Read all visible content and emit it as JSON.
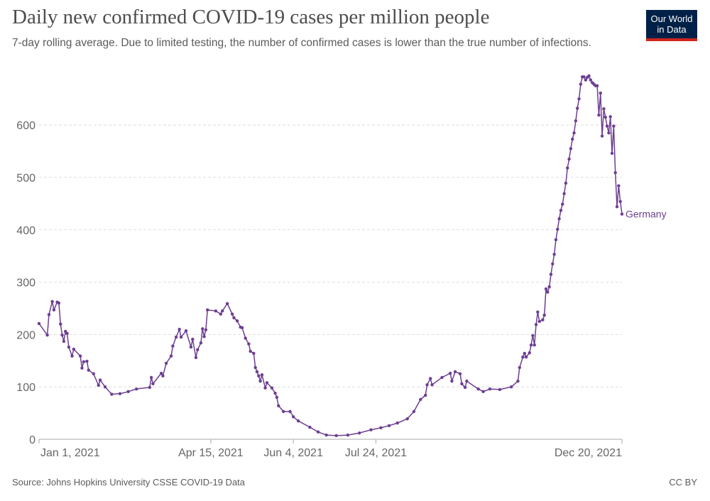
{
  "header": {
    "title": "Daily new confirmed COVID-19 cases per million people",
    "subtitle": "7-day rolling average. Due to limited testing, the number of confirmed cases is lower than the true number of infections.",
    "logo": "Our World in Data"
  },
  "footer": {
    "source": "Source: Johns Hopkins University CSSE COVID-19 Data",
    "license": "CC BY"
  },
  "chart_data": {
    "type": "line",
    "title": "Daily new confirmed COVID-19 cases per million people",
    "xlabel": "",
    "ylabel": "",
    "xlim": [
      "2021-01-01",
      "2021-12-20"
    ],
    "ylim": [
      0,
      700
    ],
    "x_ticks": [
      {
        "date": "2021-01-01",
        "label": "Jan 1, 2021"
      },
      {
        "date": "2021-04-15",
        "label": "Apr 15, 2021"
      },
      {
        "date": "2021-06-04",
        "label": "Jun 4, 2021"
      },
      {
        "date": "2021-07-24",
        "label": "Jul 24, 2021"
      },
      {
        "date": "2021-12-20",
        "label": "Dec 20, 2021"
      }
    ],
    "y_ticks": [
      "0",
      "100",
      "200",
      "300",
      "400",
      "500",
      "600"
    ],
    "grid": "horizontal dashed",
    "legend": "inline label at line end",
    "series": [
      {
        "name": "Germany",
        "color": "#6d3e91",
        "points": [
          [
            "2021-01-01",
            221
          ],
          [
            "2021-01-06",
            199
          ],
          [
            "2021-01-07",
            238
          ],
          [
            "2021-01-09",
            263
          ],
          [
            "2021-01-10",
            247
          ],
          [
            "2021-01-12",
            262
          ],
          [
            "2021-01-13",
            260
          ],
          [
            "2021-01-14",
            220
          ],
          [
            "2021-01-15",
            199
          ],
          [
            "2021-01-16",
            187
          ],
          [
            "2021-01-17",
            206
          ],
          [
            "2021-01-18",
            202
          ],
          [
            "2021-01-19",
            176
          ],
          [
            "2021-01-21",
            159
          ],
          [
            "2021-01-22",
            172
          ],
          [
            "2021-01-26",
            159
          ],
          [
            "2021-01-27",
            136
          ],
          [
            "2021-01-28",
            148
          ],
          [
            "2021-01-30",
            149
          ],
          [
            "2021-01-31",
            132
          ],
          [
            "2021-02-03",
            125
          ],
          [
            "2021-02-06",
            103
          ],
          [
            "2021-02-07",
            113
          ],
          [
            "2021-02-10",
            100
          ],
          [
            "2021-02-14",
            86
          ],
          [
            "2021-02-19",
            87
          ],
          [
            "2021-02-24",
            91
          ],
          [
            "2021-03-01",
            96
          ],
          [
            "2021-03-09",
            99
          ],
          [
            "2021-03-10",
            118
          ],
          [
            "2021-03-11",
            106
          ],
          [
            "2021-03-16",
            126
          ],
          [
            "2021-03-17",
            121
          ],
          [
            "2021-03-19",
            145
          ],
          [
            "2021-03-22",
            159
          ],
          [
            "2021-03-23",
            178
          ],
          [
            "2021-03-25",
            195
          ],
          [
            "2021-03-27",
            210
          ],
          [
            "2021-03-28",
            195
          ],
          [
            "2021-03-31",
            207
          ],
          [
            "2021-04-03",
            176
          ],
          [
            "2021-04-04",
            191
          ],
          [
            "2021-04-06",
            156
          ],
          [
            "2021-04-07",
            171
          ],
          [
            "2021-04-09",
            184
          ],
          [
            "2021-04-10",
            211
          ],
          [
            "2021-04-11",
            196
          ],
          [
            "2021-04-12",
            209
          ],
          [
            "2021-04-13",
            247
          ],
          [
            "2021-04-18",
            245
          ],
          [
            "2021-04-21",
            239
          ],
          [
            "2021-04-22",
            245
          ],
          [
            "2021-04-25",
            259
          ],
          [
            "2021-04-28",
            239
          ],
          [
            "2021-04-29",
            232
          ],
          [
            "2021-05-01",
            226
          ],
          [
            "2021-05-03",
            214
          ],
          [
            "2021-05-04",
            213
          ],
          [
            "2021-05-06",
            193
          ],
          [
            "2021-05-08",
            182
          ],
          [
            "2021-05-09",
            168
          ],
          [
            "2021-05-11",
            164
          ],
          [
            "2021-05-12",
            137
          ],
          [
            "2021-05-13",
            129
          ],
          [
            "2021-05-14",
            121
          ],
          [
            "2021-05-15",
            111
          ],
          [
            "2021-05-16",
            123
          ],
          [
            "2021-05-18",
            98
          ],
          [
            "2021-05-19",
            108
          ],
          [
            "2021-05-22",
            98
          ],
          [
            "2021-05-24",
            88
          ],
          [
            "2021-05-25",
            80
          ],
          [
            "2021-05-26",
            64
          ],
          [
            "2021-05-29",
            53
          ],
          [
            "2021-06-02",
            53
          ],
          [
            "2021-06-04",
            43
          ],
          [
            "2021-06-07",
            35
          ],
          [
            "2021-06-14",
            23
          ],
          [
            "2021-06-19",
            14
          ],
          [
            "2021-06-24",
            8
          ],
          [
            "2021-06-30",
            7
          ],
          [
            "2021-07-07",
            8
          ],
          [
            "2021-07-14",
            12
          ],
          [
            "2021-07-21",
            18
          ],
          [
            "2021-07-27",
            22
          ],
          [
            "2021-08-01",
            26
          ],
          [
            "2021-08-06",
            31
          ],
          [
            "2021-08-12",
            39
          ],
          [
            "2021-08-16",
            53
          ],
          [
            "2021-08-20",
            76
          ],
          [
            "2021-08-23",
            84
          ],
          [
            "2021-08-24",
            104
          ],
          [
            "2021-08-26",
            116
          ],
          [
            "2021-08-27",
            104
          ],
          [
            "2021-09-02",
            118
          ],
          [
            "2021-09-07",
            126
          ],
          [
            "2021-09-08",
            111
          ],
          [
            "2021-09-10",
            129
          ],
          [
            "2021-09-13",
            125
          ],
          [
            "2021-09-14",
            106
          ],
          [
            "2021-09-16",
            99
          ],
          [
            "2021-09-17",
            111
          ],
          [
            "2021-09-24",
            96
          ],
          [
            "2021-09-27",
            91
          ],
          [
            "2021-10-01",
            96
          ],
          [
            "2021-10-07",
            95
          ],
          [
            "2021-10-14",
            100
          ],
          [
            "2021-10-18",
            111
          ],
          [
            "2021-10-19",
            137
          ],
          [
            "2021-10-21",
            157
          ],
          [
            "2021-10-22",
            164
          ],
          [
            "2021-10-23",
            157
          ],
          [
            "2021-10-25",
            165
          ],
          [
            "2021-10-26",
            180
          ],
          [
            "2021-10-27",
            198
          ],
          [
            "2021-10-28",
            180
          ],
          [
            "2021-10-29",
            219
          ],
          [
            "2021-10-30",
            243
          ],
          [
            "2021-10-31",
            225
          ],
          [
            "2021-11-02",
            228
          ],
          [
            "2021-11-03",
            237
          ],
          [
            "2021-11-04",
            287
          ],
          [
            "2021-11-05",
            281
          ],
          [
            "2021-11-06",
            291
          ],
          [
            "2021-11-07",
            315
          ],
          [
            "2021-11-08",
            335
          ],
          [
            "2021-11-09",
            353
          ],
          [
            "2021-11-10",
            381
          ],
          [
            "2021-11-11",
            401
          ],
          [
            "2021-11-12",
            421
          ],
          [
            "2021-11-13",
            437
          ],
          [
            "2021-11-14",
            449
          ],
          [
            "2021-11-15",
            469
          ],
          [
            "2021-11-16",
            489
          ],
          [
            "2021-11-17",
            518
          ],
          [
            "2021-11-18",
            535
          ],
          [
            "2021-11-19",
            555
          ],
          [
            "2021-11-20",
            573
          ],
          [
            "2021-11-21",
            585
          ],
          [
            "2021-11-22",
            608
          ],
          [
            "2021-11-23",
            632
          ],
          [
            "2021-11-24",
            650
          ],
          [
            "2021-11-25",
            678
          ],
          [
            "2021-11-26",
            692
          ],
          [
            "2021-11-27",
            692
          ],
          [
            "2021-11-28",
            686
          ],
          [
            "2021-11-29",
            691
          ],
          [
            "2021-11-30",
            694
          ],
          [
            "2021-12-01",
            686
          ],
          [
            "2021-12-02",
            681
          ],
          [
            "2021-12-03",
            678
          ],
          [
            "2021-12-04",
            675
          ],
          [
            "2021-12-05",
            675
          ],
          [
            "2021-12-06",
            619
          ],
          [
            "2021-12-07",
            661
          ],
          [
            "2021-12-08",
            579
          ],
          [
            "2021-12-09",
            631
          ],
          [
            "2021-12-10",
            615
          ],
          [
            "2021-12-11",
            598
          ],
          [
            "2021-12-12",
            585
          ],
          [
            "2021-12-13",
            616
          ],
          [
            "2021-12-14",
            546
          ],
          [
            "2021-12-15",
            598
          ],
          [
            "2021-12-16",
            509
          ],
          [
            "2021-12-17",
            444
          ],
          [
            "2021-12-18",
            484
          ],
          [
            "2021-12-19",
            454
          ],
          [
            "2021-12-20",
            430
          ]
        ]
      }
    ]
  }
}
